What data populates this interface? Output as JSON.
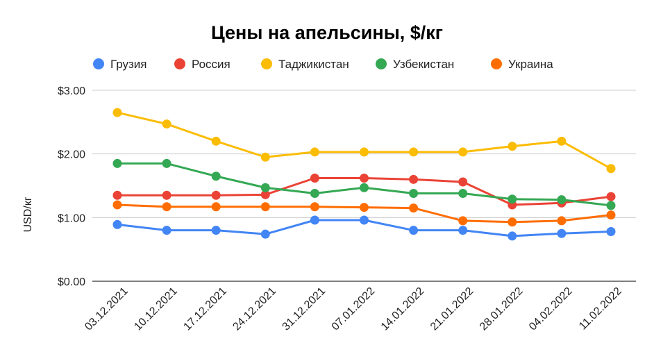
{
  "chart_data": {
    "type": "line",
    "title": "Цены на апельсины, $/кг",
    "xlabel": "",
    "ylabel": "USD/кг",
    "ylim": [
      0,
      3
    ],
    "y_ticks": [
      "$0.00",
      "$1.00",
      "$2.00",
      "$3.00"
    ],
    "y_tick_values": [
      0,
      1,
      2,
      3
    ],
    "grid": true,
    "legend_position": "top",
    "categories": [
      "03.12.2021",
      "10.12.2021",
      "17.12.2021",
      "24.12.2021",
      "31.12.2021",
      "07.01.2022",
      "14.01.2022",
      "21.01.2022",
      "28.01.2022",
      "04.02.2022",
      "11.02.2022"
    ],
    "series": [
      {
        "name": "Грузия",
        "color": "#4285F4",
        "values": [
          0.89,
          0.8,
          0.8,
          0.74,
          0.96,
          0.96,
          0.8,
          0.8,
          0.71,
          0.75,
          0.78
        ]
      },
      {
        "name": "Россия",
        "color": "#EA4335",
        "values": [
          1.35,
          1.35,
          1.35,
          1.36,
          1.62,
          1.62,
          1.6,
          1.56,
          1.2,
          1.23,
          1.33
        ]
      },
      {
        "name": "Таджикистан",
        "color": "#FBBC04",
        "values": [
          2.65,
          2.47,
          2.2,
          1.95,
          2.03,
          2.03,
          2.03,
          2.03,
          2.12,
          2.2,
          1.77
        ]
      },
      {
        "name": "Узбекистан",
        "color": "#34A853",
        "values": [
          1.85,
          1.85,
          1.65,
          1.47,
          1.38,
          1.47,
          1.38,
          1.38,
          1.29,
          1.28,
          1.19
        ]
      },
      {
        "name": "Украина",
        "color": "#FF6D01",
        "values": [
          1.2,
          1.17,
          1.17,
          1.17,
          1.17,
          1.16,
          1.15,
          0.95,
          0.93,
          0.95,
          1.04
        ]
      }
    ]
  }
}
